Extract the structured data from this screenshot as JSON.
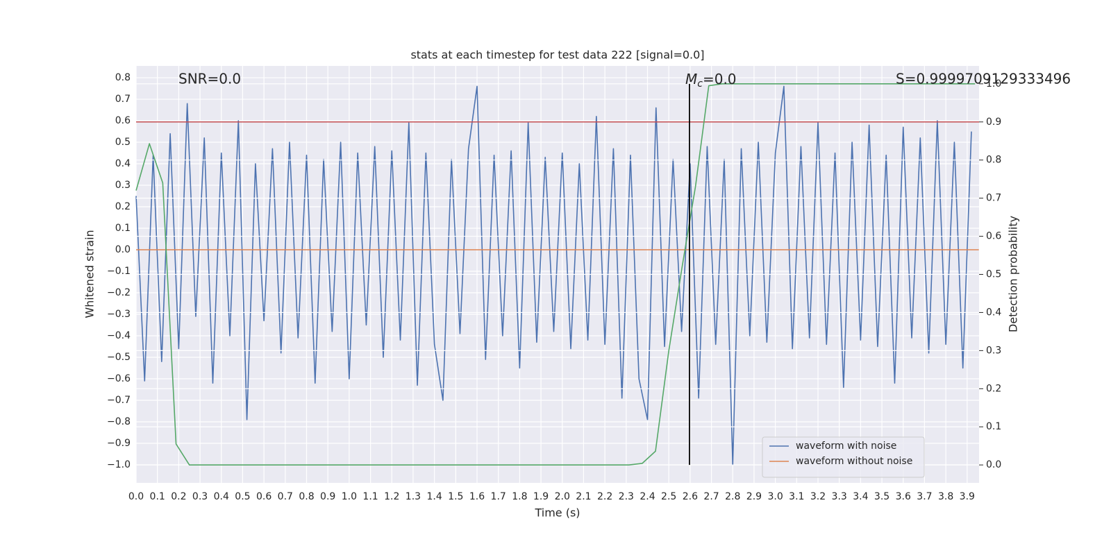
{
  "chart_data": {
    "type": "line",
    "title": "stats at each timestep for test data 222 [signal=0.0]",
    "xlabel": "Time (s)",
    "ylabel": "Whitened strain",
    "y2label": "Detection probability",
    "annotations": [
      "SNR=0.0",
      "S=0.9999709129333496"
    ],
    "mc_annotation": [
      "M",
      "c",
      "=0.0"
    ],
    "xlim": [
      0,
      3.956
    ],
    "ylim": [
      -1.084,
      0.855
    ],
    "y2lim": [
      -0.047,
      1.047
    ],
    "grid": true,
    "legend": "lower right",
    "xticks": [
      {
        "value": 0,
        "label": "0.0"
      },
      {
        "value": 0.1,
        "label": "0.1"
      },
      {
        "value": 0.2,
        "label": "0.2"
      },
      {
        "value": 0.3,
        "label": "0.3"
      },
      {
        "value": 0.4,
        "label": "0.4"
      },
      {
        "value": 0.5,
        "label": "0.5"
      },
      {
        "value": 0.6,
        "label": "0.6"
      },
      {
        "value": 0.7,
        "label": "0.7"
      },
      {
        "value": 0.8,
        "label": "0.8"
      },
      {
        "value": 0.9,
        "label": "0.9"
      },
      {
        "value": 1,
        "label": "1.0"
      },
      {
        "value": 1.1,
        "label": "1.1"
      },
      {
        "value": 1.2,
        "label": "1.2"
      },
      {
        "value": 1.3,
        "label": "1.3"
      },
      {
        "value": 1.4,
        "label": "1.4"
      },
      {
        "value": 1.5,
        "label": "1.5"
      },
      {
        "value": 1.6,
        "label": "1.6"
      },
      {
        "value": 1.7,
        "label": "1.7"
      },
      {
        "value": 1.8,
        "label": "1.8"
      },
      {
        "value": 1.9,
        "label": "1.9"
      },
      {
        "value": 2,
        "label": "2.0"
      },
      {
        "value": 2.1,
        "label": "2.1"
      },
      {
        "value": 2.2,
        "label": "2.2"
      },
      {
        "value": 2.3,
        "label": "2.3"
      },
      {
        "value": 2.4,
        "label": "2.4"
      },
      {
        "value": 2.5,
        "label": "2.5"
      },
      {
        "value": 2.6,
        "label": "2.6"
      },
      {
        "value": 2.7,
        "label": "2.7"
      },
      {
        "value": 2.8,
        "label": "2.8"
      },
      {
        "value": 2.9,
        "label": "2.9"
      },
      {
        "value": 3,
        "label": "3.0"
      },
      {
        "value": 3.1,
        "label": "3.1"
      },
      {
        "value": 3.2,
        "label": "3.2"
      },
      {
        "value": 3.3,
        "label": "3.3"
      },
      {
        "value": 3.4,
        "label": "3.4"
      },
      {
        "value": 3.5,
        "label": "3.5"
      },
      {
        "value": 3.6,
        "label": "3.6"
      },
      {
        "value": 3.7,
        "label": "3.7"
      },
      {
        "value": 3.8,
        "label": "3.8"
      },
      {
        "value": 3.9,
        "label": "3.9"
      }
    ],
    "yticks": [
      {
        "value": 0.8,
        "label": "0.8"
      },
      {
        "value": 0.7,
        "label": "0.7"
      },
      {
        "value": 0.6,
        "label": "0.6"
      },
      {
        "value": 0.5,
        "label": "0.5"
      },
      {
        "value": 0.4,
        "label": "0.4"
      },
      {
        "value": 0.3,
        "label": "0.3"
      },
      {
        "value": 0.2,
        "label": "0.2"
      },
      {
        "value": 0.1,
        "label": "0.1"
      },
      {
        "value": 0,
        "label": "0.0"
      },
      {
        "value": -0.1,
        "label": "−0.1"
      },
      {
        "value": -0.2,
        "label": "−0.2"
      },
      {
        "value": -0.3,
        "label": "−0.3"
      },
      {
        "value": -0.4,
        "label": "−0.4"
      },
      {
        "value": -0.5,
        "label": "−0.5"
      },
      {
        "value": -0.6,
        "label": "−0.6"
      },
      {
        "value": -0.7,
        "label": "−0.7"
      },
      {
        "value": -0.8,
        "label": "−0.8"
      },
      {
        "value": -0.9,
        "label": "−0.9"
      },
      {
        "value": -1,
        "label": "−1.0"
      }
    ],
    "y2ticks": [
      {
        "value": 0,
        "label": "0.0"
      },
      {
        "value": 0.1,
        "label": "0.1"
      },
      {
        "value": 0.2,
        "label": "0.2"
      },
      {
        "value": 0.3,
        "label": "0.3"
      },
      {
        "value": 0.4,
        "label": "0.4"
      },
      {
        "value": 0.5,
        "label": "0.5"
      },
      {
        "value": 0.6,
        "label": "0.6"
      },
      {
        "value": 0.7,
        "label": "0.7"
      },
      {
        "value": 0.8,
        "label": "0.8"
      },
      {
        "value": 0.9,
        "label": "0.9"
      },
      {
        "value": 1,
        "label": "1.0"
      }
    ],
    "hlines": [
      {
        "y": 0.9,
        "axis": "y2",
        "color": "#c44e52"
      }
    ],
    "vlines": [
      {
        "x": 2.597,
        "y2range": [
          0,
          1
        ],
        "color": "#000000"
      }
    ],
    "series": [
      {
        "name": "waveform with noise",
        "color": "#4c72b0",
        "x": [
          0,
          0.04,
          0.08,
          0.12,
          0.16,
          0.2,
          0.24,
          0.28,
          0.32,
          0.36,
          0.4,
          0.44,
          0.48,
          0.52,
          0.56,
          0.6,
          0.64,
          0.68,
          0.72,
          0.76,
          0.8,
          0.84,
          0.88,
          0.92,
          0.96,
          1,
          1.04,
          1.08,
          1.12,
          1.16,
          1.2,
          1.24,
          1.28,
          1.32,
          1.36,
          1.4,
          1.44,
          1.48,
          1.52,
          1.56,
          1.6,
          1.64,
          1.68,
          1.72,
          1.76,
          1.8,
          1.84,
          1.88,
          1.92,
          1.96,
          2,
          2.04,
          2.08,
          2.12,
          2.16,
          2.2,
          2.24,
          2.28,
          2.32,
          2.36,
          2.4,
          2.44,
          2.48,
          2.52,
          2.56,
          2.6,
          2.64,
          2.68,
          2.72,
          2.76,
          2.8,
          2.84,
          2.88,
          2.92,
          2.96,
          3,
          3.04,
          3.08,
          3.12,
          3.16,
          3.2,
          3.24,
          3.28,
          3.32,
          3.36,
          3.4,
          3.44,
          3.48,
          3.52,
          3.56,
          3.6,
          3.64,
          3.68,
          3.72,
          3.76,
          3.8,
          3.84,
          3.88,
          3.92
        ],
        "values": [
          0.25,
          -0.61,
          0.44,
          -0.52,
          0.54,
          -0.46,
          0.68,
          -0.31,
          0.52,
          -0.62,
          0.45,
          -0.4,
          0.6,
          -0.79,
          0.4,
          -0.33,
          0.47,
          -0.48,
          0.5,
          -0.41,
          0.44,
          -0.62,
          0.42,
          -0.38,
          0.5,
          -0.6,
          0.45,
          -0.35,
          0.48,
          -0.5,
          0.46,
          -0.42,
          0.59,
          -0.63,
          0.45,
          -0.44,
          -0.7,
          0.42,
          -0.39,
          0.47,
          0.76,
          -0.51,
          0.44,
          -0.4,
          0.46,
          -0.55,
          0.59,
          -0.43,
          0.43,
          -0.38,
          0.45,
          -0.46,
          0.4,
          -0.42,
          0.62,
          -0.44,
          0.47,
          -0.69,
          0.44,
          -0.6,
          -0.79,
          0.66,
          -0.45,
          0.42,
          -0.38,
          0.4,
          -0.69,
          0.48,
          -0.44,
          0.42,
          -1.0,
          0.47,
          -0.4,
          0.5,
          -0.43,
          0.45,
          0.76,
          -0.46,
          0.48,
          -0.41,
          0.59,
          -0.44,
          0.45,
          -0.64,
          0.5,
          -0.42,
          0.58,
          -0.45,
          0.44,
          -0.62,
          0.57,
          -0.41,
          0.52,
          -0.48,
          0.6,
          -0.44,
          0.5,
          -0.55,
          0.55
        ]
      },
      {
        "name": "waveform without noise",
        "color": "#dd8452",
        "x": [
          0,
          3.955
        ],
        "values": [
          0,
          0
        ]
      },
      {
        "color": "#55a868",
        "axis": "y2",
        "x": [
          0,
          0.0625,
          0.125,
          0.1875,
          0.25,
          2.3125,
          2.375,
          2.4375,
          2.5,
          2.5625,
          2.625,
          2.6875,
          2.75,
          3.9375
        ],
        "values": [
          0.72,
          0.843,
          0.74,
          0.055,
          0,
          0,
          0.004,
          0.036,
          0.3,
          0.52,
          0.73,
          0.995,
          1,
          1
        ]
      }
    ]
  }
}
